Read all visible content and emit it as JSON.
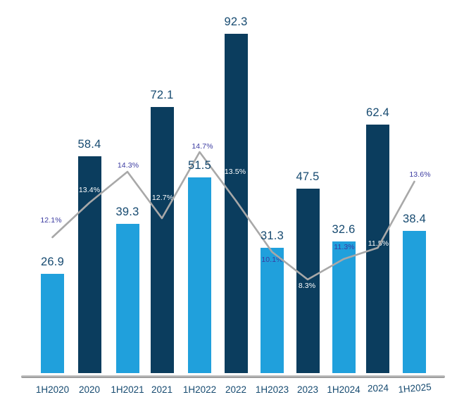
{
  "chart_data": {
    "type": "bar",
    "subtype": "combo-bar-line",
    "categories": [
      "1H2020",
      "2020",
      "1H2021",
      "2021",
      "1H2022",
      "2022",
      "1H2023",
      "2023",
      "1H2024",
      "2024",
      "1H2025"
    ],
    "series": [
      {
        "name": "period-values",
        "type": "bar",
        "values": [
          26.9,
          58.4,
          39.3,
          72.1,
          51.5,
          92.3,
          31.3,
          47.5,
          32.6,
          62.4,
          38.4
        ],
        "bar_style_pattern": [
          "half-year-light-blue",
          "full-year-dark-navy"
        ]
      },
      {
        "name": "percentage-rate",
        "type": "line",
        "unit": "%",
        "values": [
          12.1,
          13.4,
          14.3,
          12.7,
          14.7,
          13.5,
          10.1,
          8.3,
          11.3,
          11.5,
          13.6
        ]
      }
    ],
    "value_axis_visible": false,
    "grid": false,
    "legend": false,
    "colors": {
      "half_year_bar": "#20A0DC",
      "full_year_bar": "#0B3D5E",
      "trend_line": "#A8A8A8",
      "value_label": "#164A70",
      "pct_label": "#3A3AA0",
      "pct_label_on_dark_bar": "#FFFFFF",
      "axis_line": "#A3A3A3",
      "background": "#FFFFFF"
    }
  }
}
